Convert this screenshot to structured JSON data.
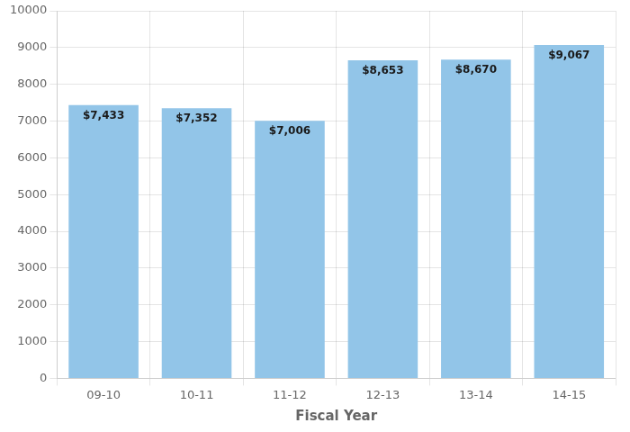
{
  "chart_data": {
    "type": "bar",
    "categories": [
      "09-10",
      "10-11",
      "11-12",
      "12-13",
      "13-14",
      "14-15"
    ],
    "values": [
      7433,
      7352,
      7006,
      8653,
      8670,
      9067
    ],
    "value_labels": [
      "$7,433",
      "$7,352",
      "$7,006",
      "$8,653",
      "$8,670",
      "$9,067"
    ],
    "data_labels": true,
    "color": "#92C5E8",
    "xlabel": "Fiscal Year",
    "ylim": [
      0,
      10000
    ],
    "yticks": [
      0,
      1000,
      2000,
      3000,
      4000,
      5000,
      6000,
      7000,
      8000,
      9000,
      10000
    ],
    "grid": true
  }
}
